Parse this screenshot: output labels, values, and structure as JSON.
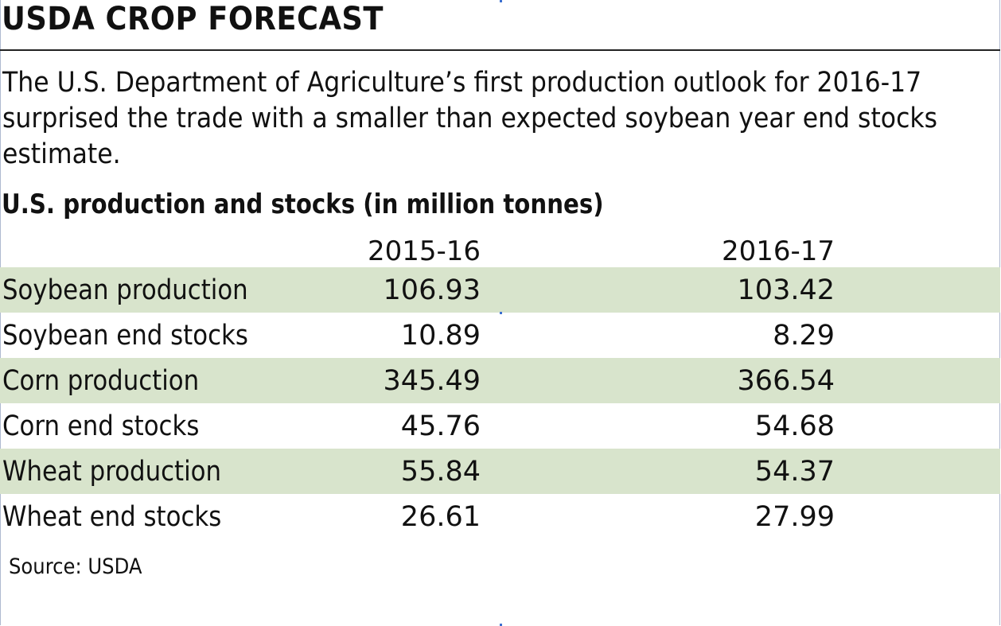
{
  "chart_data": {
    "type": "table",
    "title": "USDA CROP FORECAST",
    "description": "The U.S. Department of Agriculture’s first production outlook for 2016-17 surprised the trade with a smaller than expected soybean year end stocks estimate.",
    "subtitle": "U.S. production and stocks (in million tonnes)",
    "columns": [
      "2015-16",
      "2016-17"
    ],
    "rows": [
      {
        "label": "Soybean production",
        "values": [
          "106.93",
          "103.42"
        ]
      },
      {
        "label": "Soybean end stocks",
        "values": [
          "10.89",
          "8.29"
        ]
      },
      {
        "label": "Corn production",
        "values": [
          "345.49",
          "366.54"
        ]
      },
      {
        "label": "Corn end stocks",
        "values": [
          "45.76",
          "54.68"
        ]
      },
      {
        "label": "Wheat production",
        "values": [
          "55.84",
          "54.37"
        ]
      },
      {
        "label": "Wheat end stocks",
        "values": [
          "26.61",
          "27.99"
        ]
      }
    ],
    "source": "Source: USDA"
  },
  "colors": {
    "row_shade": "#d8e4cc",
    "text": "#111111",
    "rule": "#222222"
  }
}
